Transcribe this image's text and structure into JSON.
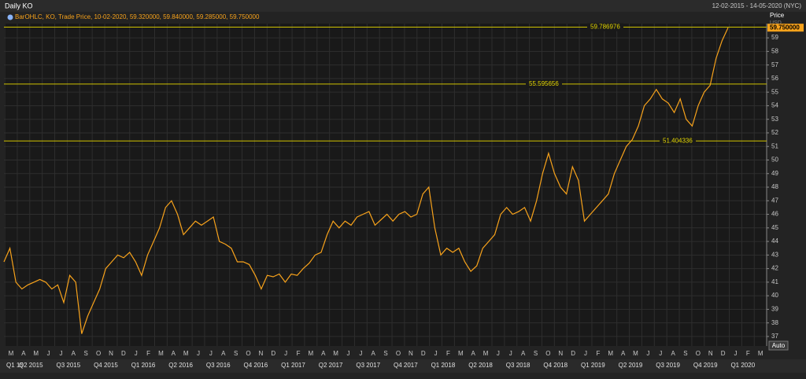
{
  "chart_data": {
    "type": "line",
    "title": "Daily KO",
    "subtitle": "12-02-2015 - 14-05-2020 (NYC)",
    "y_axis_label": "Price",
    "y_unit": "USD",
    "button": "Auto",
    "grid": true,
    "series": [
      {
        "name": "BarOHLC, KO, Trade Price, 10-02-2020, 59.320000, 59.840000, 59.285000, 59.750000",
        "color": "#f7a21b",
        "values": [
          42.5,
          43.5,
          41,
          40.5,
          40.8,
          41,
          41.2,
          41,
          40.5,
          40.8,
          39.5,
          41.5,
          41,
          37.2,
          38.5,
          39.5,
          40.5,
          42,
          42.5,
          43,
          42.8,
          43.2,
          42.5,
          41.5,
          43,
          44,
          45,
          46.5,
          47,
          46,
          44.5,
          45,
          45.5,
          45.2,
          45.5,
          45.8,
          44,
          43.8,
          43.5,
          42.5,
          42.5,
          42.3,
          41.5,
          40.5,
          41.5,
          41.4,
          41.6,
          41,
          41.6,
          41.5,
          42,
          42.4,
          43,
          43.2,
          44.5,
          45.5,
          45,
          45.5,
          45.2,
          45.8,
          46,
          46.2,
          45.2,
          45.6,
          46,
          45.5,
          46,
          46.2,
          45.8,
          46,
          47.5,
          48,
          45,
          43,
          43.5,
          43.2,
          43.5,
          42.5,
          41.8,
          42.2,
          43.5,
          44,
          44.5,
          46,
          46.5,
          46,
          46.2,
          46.5,
          45.5,
          47,
          49,
          50.5,
          49,
          48,
          47.5,
          49.5,
          48.5,
          45.5,
          46,
          46.5,
          47,
          47.5,
          49,
          50,
          51,
          51.5,
          52.5,
          54,
          54.5,
          55.2,
          54.5,
          54.2,
          53.5,
          54.5,
          53,
          52.5,
          54,
          55,
          55.5,
          57.5,
          58.8,
          59.75
        ]
      }
    ],
    "ylim": [
      36.3,
      60.05
    ],
    "yticks": [
      37,
      38,
      39,
      40,
      41,
      42,
      43,
      44,
      45,
      46,
      47,
      48,
      49,
      50,
      51,
      52,
      53,
      54,
      55,
      56,
      57,
      58,
      59
    ],
    "hlines": [
      59.786976,
      55.595656,
      51.404336
    ],
    "last_price": {
      "value": 59.75,
      "label": "59.750000"
    },
    "month_labels": [
      "M",
      "A",
      "M",
      "J",
      "J",
      "A",
      "S",
      "O",
      "N",
      "D",
      "J",
      "F",
      "M",
      "A",
      "M",
      "J",
      "J",
      "A",
      "S",
      "O",
      "N",
      "D",
      "J",
      "F",
      "M",
      "A",
      "M",
      "J",
      "J",
      "A",
      "S",
      "O",
      "N",
      "D",
      "J",
      "F",
      "M",
      "A",
      "M",
      "J",
      "J",
      "A",
      "S",
      "O",
      "N",
      "D",
      "J",
      "F",
      "M",
      "A",
      "M",
      "J",
      "J",
      "A",
      "S",
      "O",
      "N",
      "D",
      "J",
      "F",
      "M"
    ],
    "quarter_labels": [
      "Q1 15",
      "Q2 2015",
      "Q3 2015",
      "Q4 2015",
      "Q1 2016",
      "Q2 2016",
      "Q3 2016",
      "Q4 2016",
      "Q1 2017",
      "Q2 2017",
      "Q3 2017",
      "Q4 2017",
      "Q1 2018",
      "Q2 2018",
      "Q3 2018",
      "Q4 2018",
      "Q1 2019",
      "Q2 2019",
      "Q3 2019",
      "Q4 2019",
      "Q1 2020"
    ]
  }
}
